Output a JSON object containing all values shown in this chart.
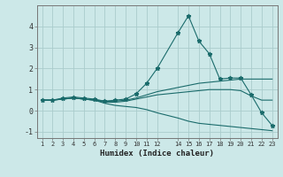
{
  "xlabel": "Humidex (Indice chaleur)",
  "xlim": [
    0.5,
    23.5
  ],
  "ylim": [
    -1.3,
    5.0
  ],
  "yticks": [
    -1,
    0,
    1,
    2,
    3,
    4
  ],
  "xticks": [
    1,
    2,
    3,
    4,
    5,
    6,
    7,
    8,
    9,
    10,
    11,
    12,
    14,
    15,
    16,
    17,
    18,
    19,
    20,
    21,
    22,
    23
  ],
  "background_color": "#cce8e8",
  "grid_color": "#aacccc",
  "line_color": "#1a6b6b",
  "lines": [
    {
      "x": [
        1,
        2,
        3,
        4,
        5,
        6,
        7,
        8,
        9,
        10,
        11,
        12,
        14,
        15,
        16,
        17,
        18,
        19,
        20,
        21,
        22,
        23
      ],
      "y": [
        0.5,
        0.5,
        0.6,
        0.65,
        0.6,
        0.55,
        0.45,
        0.5,
        0.55,
        0.8,
        1.3,
        2.0,
        3.7,
        4.5,
        3.3,
        2.7,
        1.5,
        1.55,
        1.55,
        0.75,
        -0.1,
        -0.7
      ],
      "marker": "*",
      "markersize": 3.5,
      "linewidth": 0.8,
      "style": "-"
    },
    {
      "x": [
        1,
        2,
        3,
        4,
        5,
        6,
        7,
        8,
        9,
        10,
        11,
        12,
        14,
        15,
        16,
        17,
        18,
        19,
        20,
        21,
        22,
        23
      ],
      "y": [
        0.5,
        0.5,
        0.55,
        0.6,
        0.55,
        0.5,
        0.45,
        0.45,
        0.5,
        0.6,
        0.75,
        0.9,
        1.1,
        1.2,
        1.3,
        1.35,
        1.4,
        1.45,
        1.5,
        1.5,
        1.5,
        1.5
      ],
      "marker": null,
      "markersize": 0,
      "linewidth": 0.8,
      "style": "-"
    },
    {
      "x": [
        1,
        2,
        3,
        4,
        5,
        6,
        7,
        8,
        9,
        10,
        11,
        12,
        14,
        15,
        16,
        17,
        18,
        19,
        20,
        21,
        22,
        23
      ],
      "y": [
        0.5,
        0.5,
        0.55,
        0.6,
        0.55,
        0.5,
        0.35,
        0.25,
        0.2,
        0.15,
        0.05,
        -0.1,
        -0.35,
        -0.5,
        -0.6,
        -0.65,
        -0.7,
        -0.75,
        -0.8,
        -0.85,
        -0.9,
        -0.95
      ],
      "marker": null,
      "markersize": 0,
      "linewidth": 0.8,
      "style": "-"
    },
    {
      "x": [
        1,
        2,
        3,
        4,
        5,
        6,
        7,
        8,
        9,
        10,
        11,
        12,
        14,
        15,
        16,
        17,
        18,
        19,
        20,
        21,
        22,
        23
      ],
      "y": [
        0.5,
        0.5,
        0.55,
        0.6,
        0.55,
        0.5,
        0.4,
        0.4,
        0.45,
        0.55,
        0.65,
        0.75,
        0.85,
        0.9,
        0.95,
        1.0,
        1.0,
        1.0,
        0.95,
        0.7,
        0.5,
        0.5
      ],
      "marker": null,
      "markersize": 0,
      "linewidth": 0.8,
      "style": "-"
    }
  ]
}
